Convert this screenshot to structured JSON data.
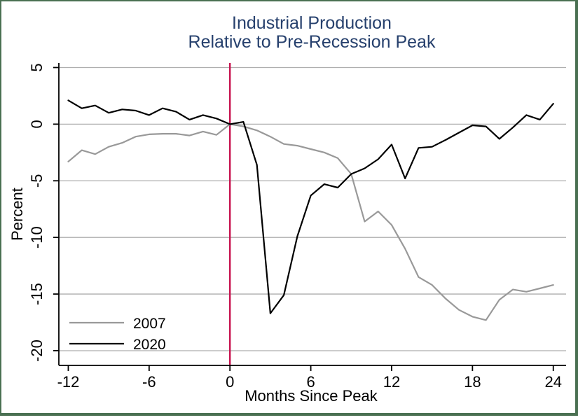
{
  "chart_data": {
    "type": "line",
    "title_line1": "Industrial Production",
    "title_line2": "Relative to Pre-Recession Peak",
    "xlabel": "Months Since Peak",
    "ylabel": "Percent",
    "xlim": [
      -12.7,
      24.95
    ],
    "ylim": [
      -21.3,
      5.4
    ],
    "x_ticks": [
      -12,
      -6,
      0,
      6,
      12,
      18,
      24
    ],
    "y_ticks": [
      5,
      0,
      -5,
      -10,
      -15,
      -20
    ],
    "grid": true,
    "legend_position": "bottom-left",
    "vline": {
      "x": 0,
      "color": "#c81450"
    },
    "x": [
      -12,
      -11,
      -10,
      -9,
      -8,
      -7,
      -6,
      -5,
      -4,
      -3,
      -2,
      -1,
      0,
      1,
      2,
      3,
      4,
      5,
      6,
      7,
      8,
      9,
      10,
      11,
      12,
      13,
      14,
      15,
      16,
      17,
      18,
      19,
      20,
      21,
      22,
      23,
      24
    ],
    "series": [
      {
        "name": "2007",
        "color": "#999999",
        "values": [
          -3.3,
          -2.3,
          -2.65,
          -2.0,
          -1.65,
          -1.1,
          -0.9,
          -0.85,
          -0.85,
          -1.0,
          -0.65,
          -0.95,
          0.0,
          -0.2,
          -0.55,
          -1.1,
          -1.75,
          -1.9,
          -2.2,
          -2.5,
          -3.0,
          -4.4,
          -8.6,
          -7.7,
          -8.9,
          -11.0,
          -13.5,
          -14.2,
          -15.4,
          -16.4,
          -17.0,
          -17.3,
          -15.5,
          -14.6,
          -14.8,
          -14.5,
          -14.2
        ]
      },
      {
        "name": "2020",
        "color": "#000000",
        "values": [
          2.1,
          1.4,
          1.65,
          1.0,
          1.3,
          1.2,
          0.8,
          1.4,
          1.1,
          0.4,
          0.8,
          0.5,
          0.0,
          0.2,
          -3.6,
          -16.7,
          -15.1,
          -9.9,
          -6.3,
          -5.3,
          -5.6,
          -4.4,
          -3.9,
          -3.1,
          -1.8,
          -4.8,
          -2.1,
          -2.0,
          -1.4,
          -0.75,
          -0.1,
          -0.2,
          -1.3,
          -0.3,
          0.8,
          0.4,
          1.8
        ]
      }
    ],
    "colors": {
      "title": "#26406d",
      "grid": "#aeaeae",
      "axis": "#000000",
      "frame_border": "#4a7052",
      "background": "#ffffff"
    }
  }
}
